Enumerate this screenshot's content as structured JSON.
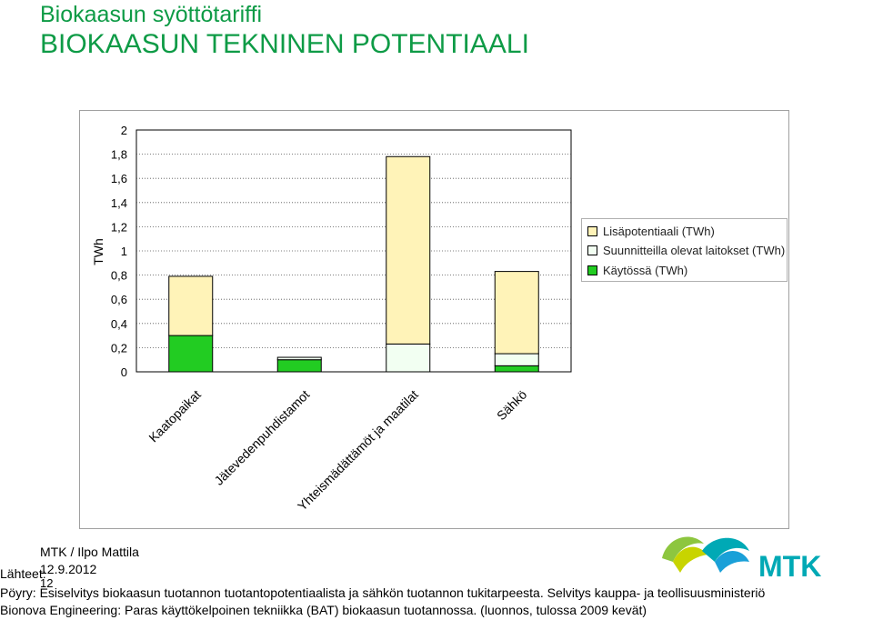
{
  "header": {
    "title": "Biokaasun syöttötariffi",
    "subtitle": "BIOKAASUN TEKNINEN POTENTIAALI"
  },
  "chart_data": {
    "type": "bar",
    "stacked": true,
    "ylabel": "TWh",
    "ylim": [
      0,
      2
    ],
    "yticks": [
      "0",
      "0,2",
      "0,4",
      "0,6",
      "0,8",
      "1",
      "1,2",
      "1,4",
      "1,6",
      "1,8",
      "2"
    ],
    "grid": "dotted horizontal",
    "legend_position": "right",
    "categories": [
      "Kaatopaikat",
      "Jätevedenpuhdistamot",
      "Yhteismädättämöt ja maatilat",
      "Sähkö"
    ],
    "series": [
      {
        "name": "Käytössä (TWh)",
        "color": "#22cc22",
        "values": [
          0.3,
          0.1,
          0.0,
          0.05
        ]
      },
      {
        "name": "Suunnitteilla olevat laitokset (TWh)",
        "color": "#f2fff2",
        "values": [
          0.0,
          0.02,
          0.23,
          0.1
        ]
      },
      {
        "name": "Lisäpotentiaali (TWh)",
        "color": "#fff3b8",
        "values": [
          0.49,
          0.0,
          1.55,
          0.68
        ]
      }
    ],
    "legend_order": [
      "Lisäpotentiaali (TWh)",
      "Suunnitteilla olevat laitokset (TWh)",
      "Käytössä (TWh)"
    ]
  },
  "footer": {
    "author": "MTK / Ilpo Mattila",
    "date": "12.9.2012",
    "slide_number": "12",
    "sources_label": "Lähteet:",
    "source1": "Pöyry: Esiselvitys biokaasun tuotannon tuotantopotentiaalista ja sähkön tuotannon tukitarpeesta. Selvitys kauppa- ja teollisuusministeriö",
    "source2": "Bionova Engineering: Paras käyttökelpoinen tekniikka (BAT) biokaasun tuotannossa. (luonnos, tulossa 2009 kevät)",
    "logo_text": "MTK"
  }
}
